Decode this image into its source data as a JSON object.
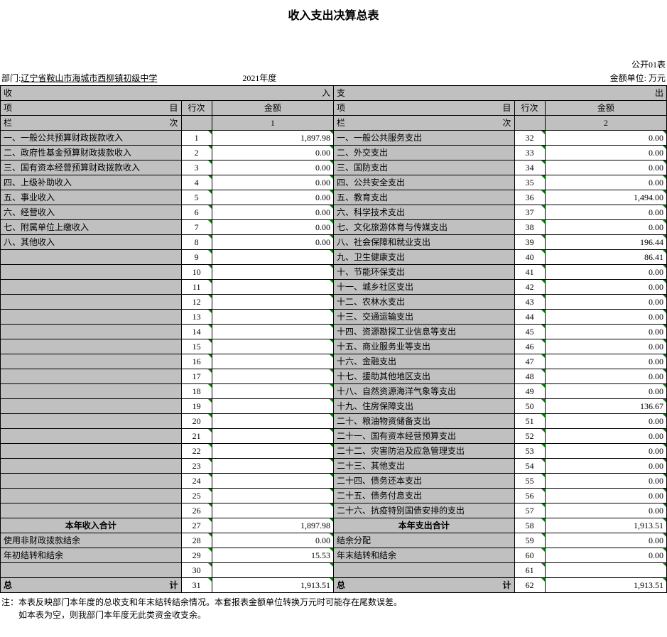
{
  "title": "收入支出决算总表",
  "meta": {
    "dept_label": "部门:",
    "dept_value": "辽宁省鞍山市海城市西柳镇初级中学",
    "year": "2021年度",
    "form_no": "公开01表",
    "unit": "金额单位: 万元"
  },
  "headers": {
    "income_big_l": "收",
    "income_big_r": "入",
    "expend_big_l": "支",
    "expend_big_r": "出",
    "item_l": "项",
    "item_r": "目",
    "rownum": "行次",
    "amount": "金额",
    "col_l": "栏",
    "col_r": "次",
    "col1": "1",
    "col2": "2"
  },
  "income_rows": [
    {
      "label": "一、一般公共预算财政拨款收入",
      "n": "1",
      "amt": "1,897.98"
    },
    {
      "label": "二、政府性基金预算财政拨款收入",
      "n": "2",
      "amt": "0.00"
    },
    {
      "label": "三、国有资本经营预算财政拨款收入",
      "n": "3",
      "amt": "0.00"
    },
    {
      "label": "四、上级补助收入",
      "n": "4",
      "amt": "0.00"
    },
    {
      "label": "五、事业收入",
      "n": "5",
      "amt": "0.00"
    },
    {
      "label": "六、经营收入",
      "n": "6",
      "amt": "0.00"
    },
    {
      "label": "七、附属单位上缴收入",
      "n": "7",
      "amt": "0.00"
    },
    {
      "label": "八、其他收入",
      "n": "8",
      "amt": "0.00"
    },
    {
      "label": "",
      "n": "9",
      "amt": ""
    },
    {
      "label": "",
      "n": "10",
      "amt": ""
    },
    {
      "label": "",
      "n": "11",
      "amt": ""
    },
    {
      "label": "",
      "n": "12",
      "amt": ""
    },
    {
      "label": "",
      "n": "13",
      "amt": ""
    },
    {
      "label": "",
      "n": "14",
      "amt": ""
    },
    {
      "label": "",
      "n": "15",
      "amt": ""
    },
    {
      "label": "",
      "n": "16",
      "amt": ""
    },
    {
      "label": "",
      "n": "17",
      "amt": ""
    },
    {
      "label": "",
      "n": "18",
      "amt": ""
    },
    {
      "label": "",
      "n": "19",
      "amt": ""
    },
    {
      "label": "",
      "n": "20",
      "amt": ""
    },
    {
      "label": "",
      "n": "21",
      "amt": ""
    },
    {
      "label": "",
      "n": "22",
      "amt": ""
    },
    {
      "label": "",
      "n": "23",
      "amt": ""
    },
    {
      "label": "",
      "n": "24",
      "amt": ""
    },
    {
      "label": "",
      "n": "25",
      "amt": ""
    },
    {
      "label": "",
      "n": "26",
      "amt": ""
    }
  ],
  "expend_rows": [
    {
      "label": "一、一般公共服务支出",
      "n": "32",
      "amt": "0.00"
    },
    {
      "label": "二、外交支出",
      "n": "33",
      "amt": "0.00"
    },
    {
      "label": "三、国防支出",
      "n": "34",
      "amt": "0.00"
    },
    {
      "label": "四、公共安全支出",
      "n": "35",
      "amt": "0.00"
    },
    {
      "label": "五、教育支出",
      "n": "36",
      "amt": "1,494.00"
    },
    {
      "label": "六、科学技术支出",
      "n": "37",
      "amt": "0.00"
    },
    {
      "label": "七、文化旅游体育与传媒支出",
      "n": "38",
      "amt": "0.00"
    },
    {
      "label": "八、社会保障和就业支出",
      "n": "39",
      "amt": "196.44"
    },
    {
      "label": "九、卫生健康支出",
      "n": "40",
      "amt": "86.41"
    },
    {
      "label": "十、节能环保支出",
      "n": "41",
      "amt": "0.00"
    },
    {
      "label": "十一、城乡社区支出",
      "n": "42",
      "amt": "0.00"
    },
    {
      "label": "十二、农林水支出",
      "n": "43",
      "amt": "0.00"
    },
    {
      "label": "十三、交通运输支出",
      "n": "44",
      "amt": "0.00"
    },
    {
      "label": "十四、资源勘探工业信息等支出",
      "n": "45",
      "amt": "0.00"
    },
    {
      "label": "十五、商业服务业等支出",
      "n": "46",
      "amt": "0.00"
    },
    {
      "label": "十六、金融支出",
      "n": "47",
      "amt": "0.00"
    },
    {
      "label": "十七、援助其他地区支出",
      "n": "48",
      "amt": "0.00"
    },
    {
      "label": "十八、自然资源海洋气象等支出",
      "n": "49",
      "amt": "0.00"
    },
    {
      "label": "十九、住房保障支出",
      "n": "50",
      "amt": "136.67"
    },
    {
      "label": "二十、粮油物资储备支出",
      "n": "51",
      "amt": "0.00"
    },
    {
      "label": "二十一、国有资本经营预算支出",
      "n": "52",
      "amt": "0.00"
    },
    {
      "label": "二十二、灾害防治及应急管理支出",
      "n": "53",
      "amt": "0.00"
    },
    {
      "label": "二十三、其他支出",
      "n": "54",
      "amt": "0.00"
    },
    {
      "label": "二十四、债务还本支出",
      "n": "55",
      "amt": "0.00"
    },
    {
      "label": "二十五、债务付息支出",
      "n": "56",
      "amt": "0.00"
    },
    {
      "label": "二十六、抗疫特别国债安排的支出",
      "n": "57",
      "amt": "0.00"
    }
  ],
  "subtotal": {
    "income_label": "本年收入合计",
    "income_n": "27",
    "income_amt": "1,897.98",
    "expend_label": "本年支出合计",
    "expend_n": "58",
    "expend_amt": "1,913.51"
  },
  "extras": [
    {
      "il": "使用非财政拨款结余",
      "in": "28",
      "ia": "0.00",
      "el": "结余分配",
      "en": "59",
      "ea": "0.00"
    },
    {
      "il": "年初结转和结余",
      "in": "29",
      "ia": "15.53",
      "el": "年末结转和结余",
      "en": "60",
      "ea": "0.00"
    },
    {
      "il": "",
      "in": "30",
      "ia": "",
      "el": "",
      "en": "61",
      "ea": ""
    }
  ],
  "total": {
    "label_l": "总",
    "label_r": "计",
    "in": "31",
    "ia": "1,913.51",
    "en": "62",
    "ea": "1,913.51"
  },
  "notes": {
    "line1": "注：本表反映部门本年度的总收支和年末结转结余情况。本套报表金额单位转换万元时可能存在尾数误差。",
    "line2": "如本表为空，则我部门本年度无此类资金收支余。"
  },
  "style": {
    "gray": "#c0c0c0",
    "tick": "#008000",
    "border": "#000000"
  }
}
